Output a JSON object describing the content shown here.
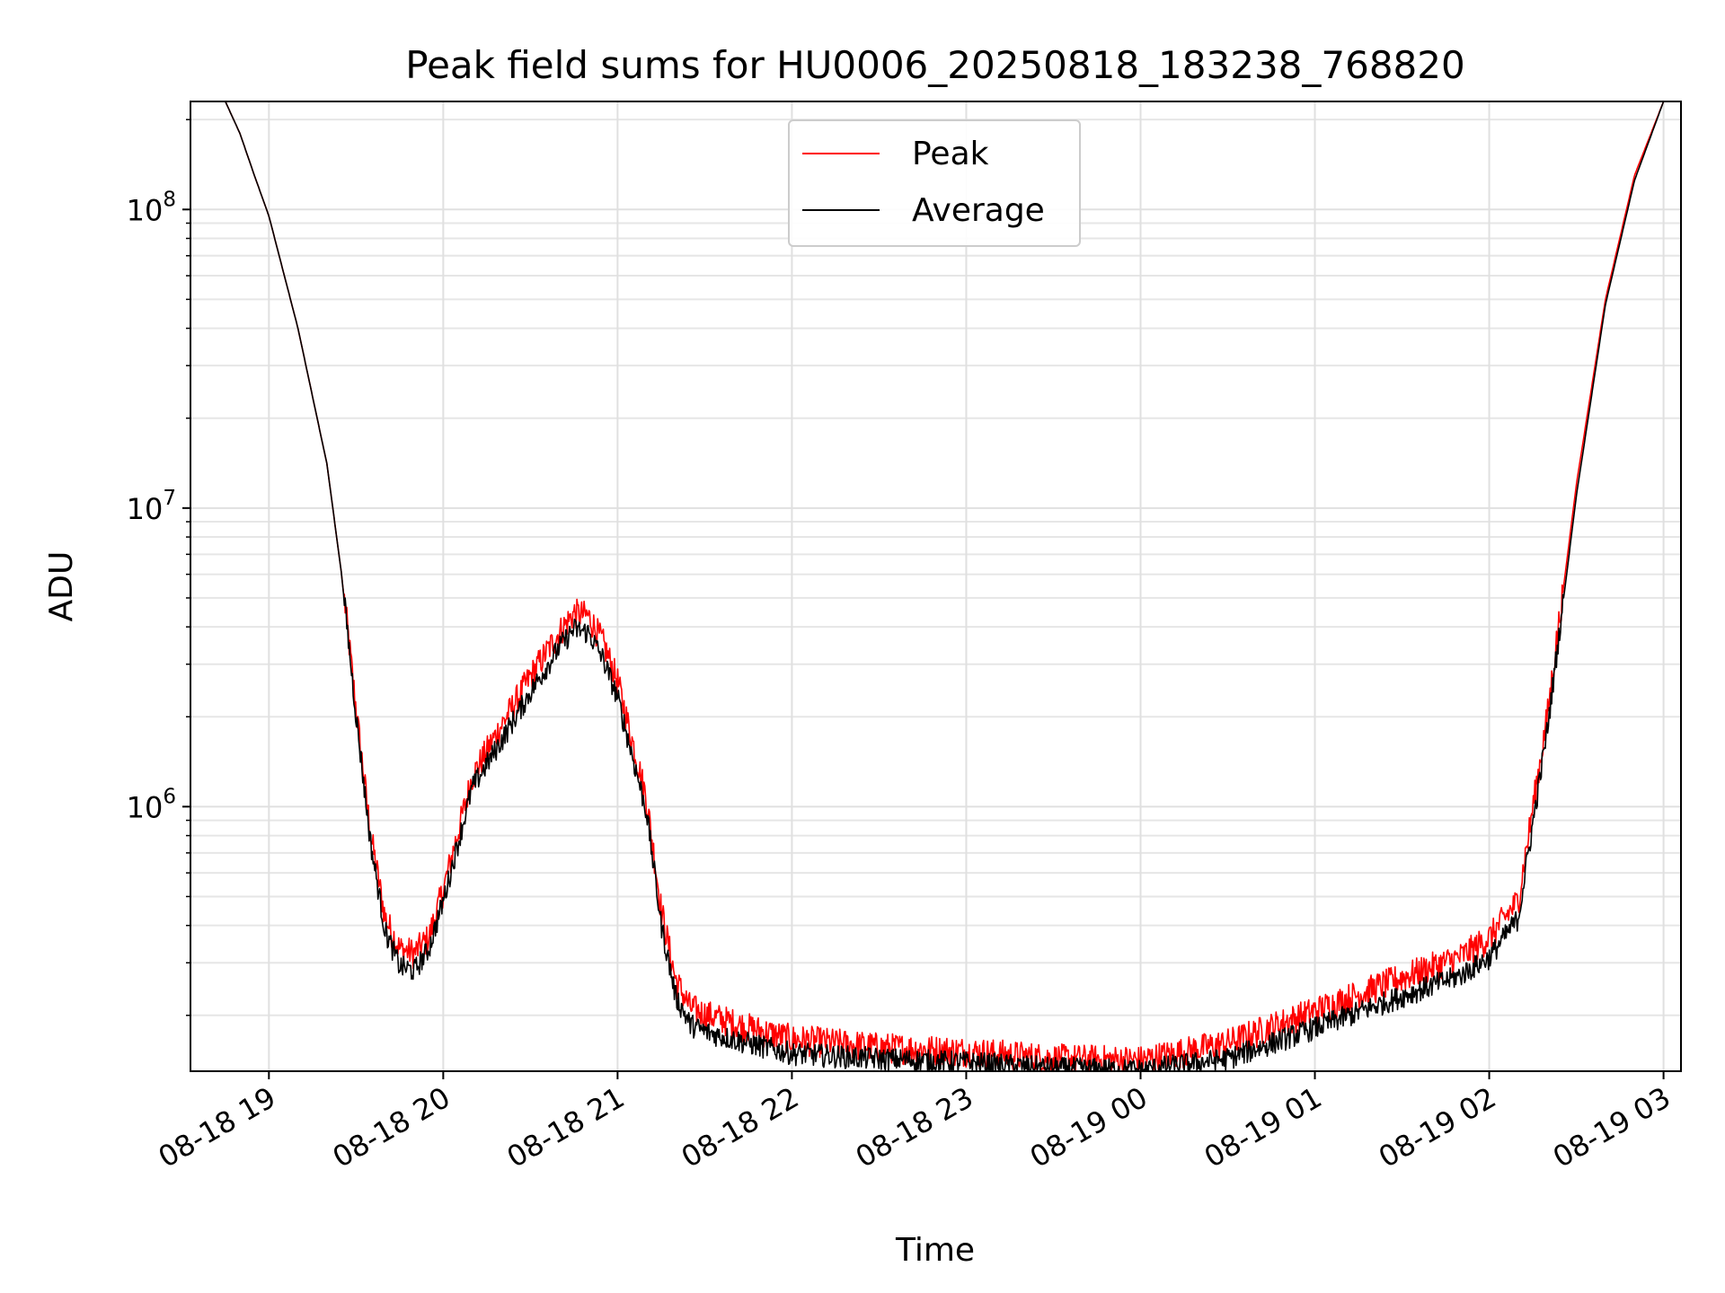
{
  "chart_data": {
    "type": "line",
    "title": "Peak field sums for HU0006_20250818_183238_768820",
    "xlabel": "Time",
    "ylabel": "ADU",
    "yscale": "log",
    "xlim": [
      "2025-08-18 18:33",
      "2025-08-19 03:06"
    ],
    "ylim": [
      130000,
      230000000
    ],
    "grid": true,
    "legend_position": "top-center",
    "x_ticks": [
      "08-18 19",
      "08-18 20",
      "08-18 21",
      "08-18 22",
      "08-18 23",
      "08-19 00",
      "08-19 01",
      "08-19 02",
      "08-19 03"
    ],
    "y_ticks": [
      {
        "base": "10",
        "exp": "6",
        "value": 1000000
      },
      {
        "base": "10",
        "exp": "7",
        "value": 10000000
      },
      {
        "base": "10",
        "exp": "8",
        "value": 100000000
      }
    ],
    "x": [
      "2025-08-18 18:45",
      "2025-08-18 18:50",
      "2025-08-18 18:55",
      "2025-08-18 19:00",
      "2025-08-18 19:10",
      "2025-08-18 19:20",
      "2025-08-18 19:25",
      "2025-08-18 19:30",
      "2025-08-18 19:35",
      "2025-08-18 19:40",
      "2025-08-18 19:45",
      "2025-08-18 19:50",
      "2025-08-18 19:55",
      "2025-08-18 20:00",
      "2025-08-18 20:10",
      "2025-08-18 20:20",
      "2025-08-18 20:30",
      "2025-08-18 20:40",
      "2025-08-18 20:45",
      "2025-08-18 20:50",
      "2025-08-18 20:55",
      "2025-08-18 21:00",
      "2025-08-18 21:10",
      "2025-08-18 21:15",
      "2025-08-18 21:20",
      "2025-08-18 21:25",
      "2025-08-18 21:30",
      "2025-08-18 21:45",
      "2025-08-18 22:00",
      "2025-08-18 22:30",
      "2025-08-18 23:00",
      "2025-08-18 23:30",
      "2025-08-19 00:00",
      "2025-08-19 00:30",
      "2025-08-19 01:00",
      "2025-08-19 01:30",
      "2025-08-19 01:50",
      "2025-08-19 02:00",
      "2025-08-19 02:10",
      "2025-08-19 02:20",
      "2025-08-19 02:30",
      "2025-08-19 02:40",
      "2025-08-19 02:50",
      "2025-08-19 03:00"
    ],
    "series": [
      {
        "name": "Peak",
        "color": "#ff0000",
        "values": [
          230000000,
          180000000,
          130000000,
          95000000,
          40000000,
          14000000,
          6000000,
          2100000,
          800000,
          420000,
          330000,
          320000,
          360000,
          520000,
          1250000,
          1850000,
          2700000,
          3800000,
          4400000,
          4300000,
          3500000,
          2600000,
          1050000,
          450000,
          260000,
          210000,
          200000,
          180000,
          165000,
          155000,
          150000,
          142000,
          140000,
          160000,
          205000,
          265000,
          310000,
          360000,
          480000,
          2000000,
          12000000,
          50000000,
          130000000,
          230000000
        ]
      },
      {
        "name": "Average",
        "color": "#000000",
        "values": [
          230000000,
          180000000,
          130000000,
          95000000,
          40000000,
          14000000,
          6000000,
          2000000,
          750000,
          380000,
          290000,
          280000,
          330000,
          480000,
          1150000,
          1650000,
          2400000,
          3400000,
          3900000,
          3800000,
          3100000,
          2300000,
          950000,
          400000,
          230000,
          185000,
          175000,
          160000,
          148000,
          142000,
          138000,
          132000,
          130000,
          142000,
          180000,
          230000,
          270000,
          310000,
          420000,
          1800000,
          11000000,
          48000000,
          125000000,
          230000000
        ]
      }
    ]
  }
}
